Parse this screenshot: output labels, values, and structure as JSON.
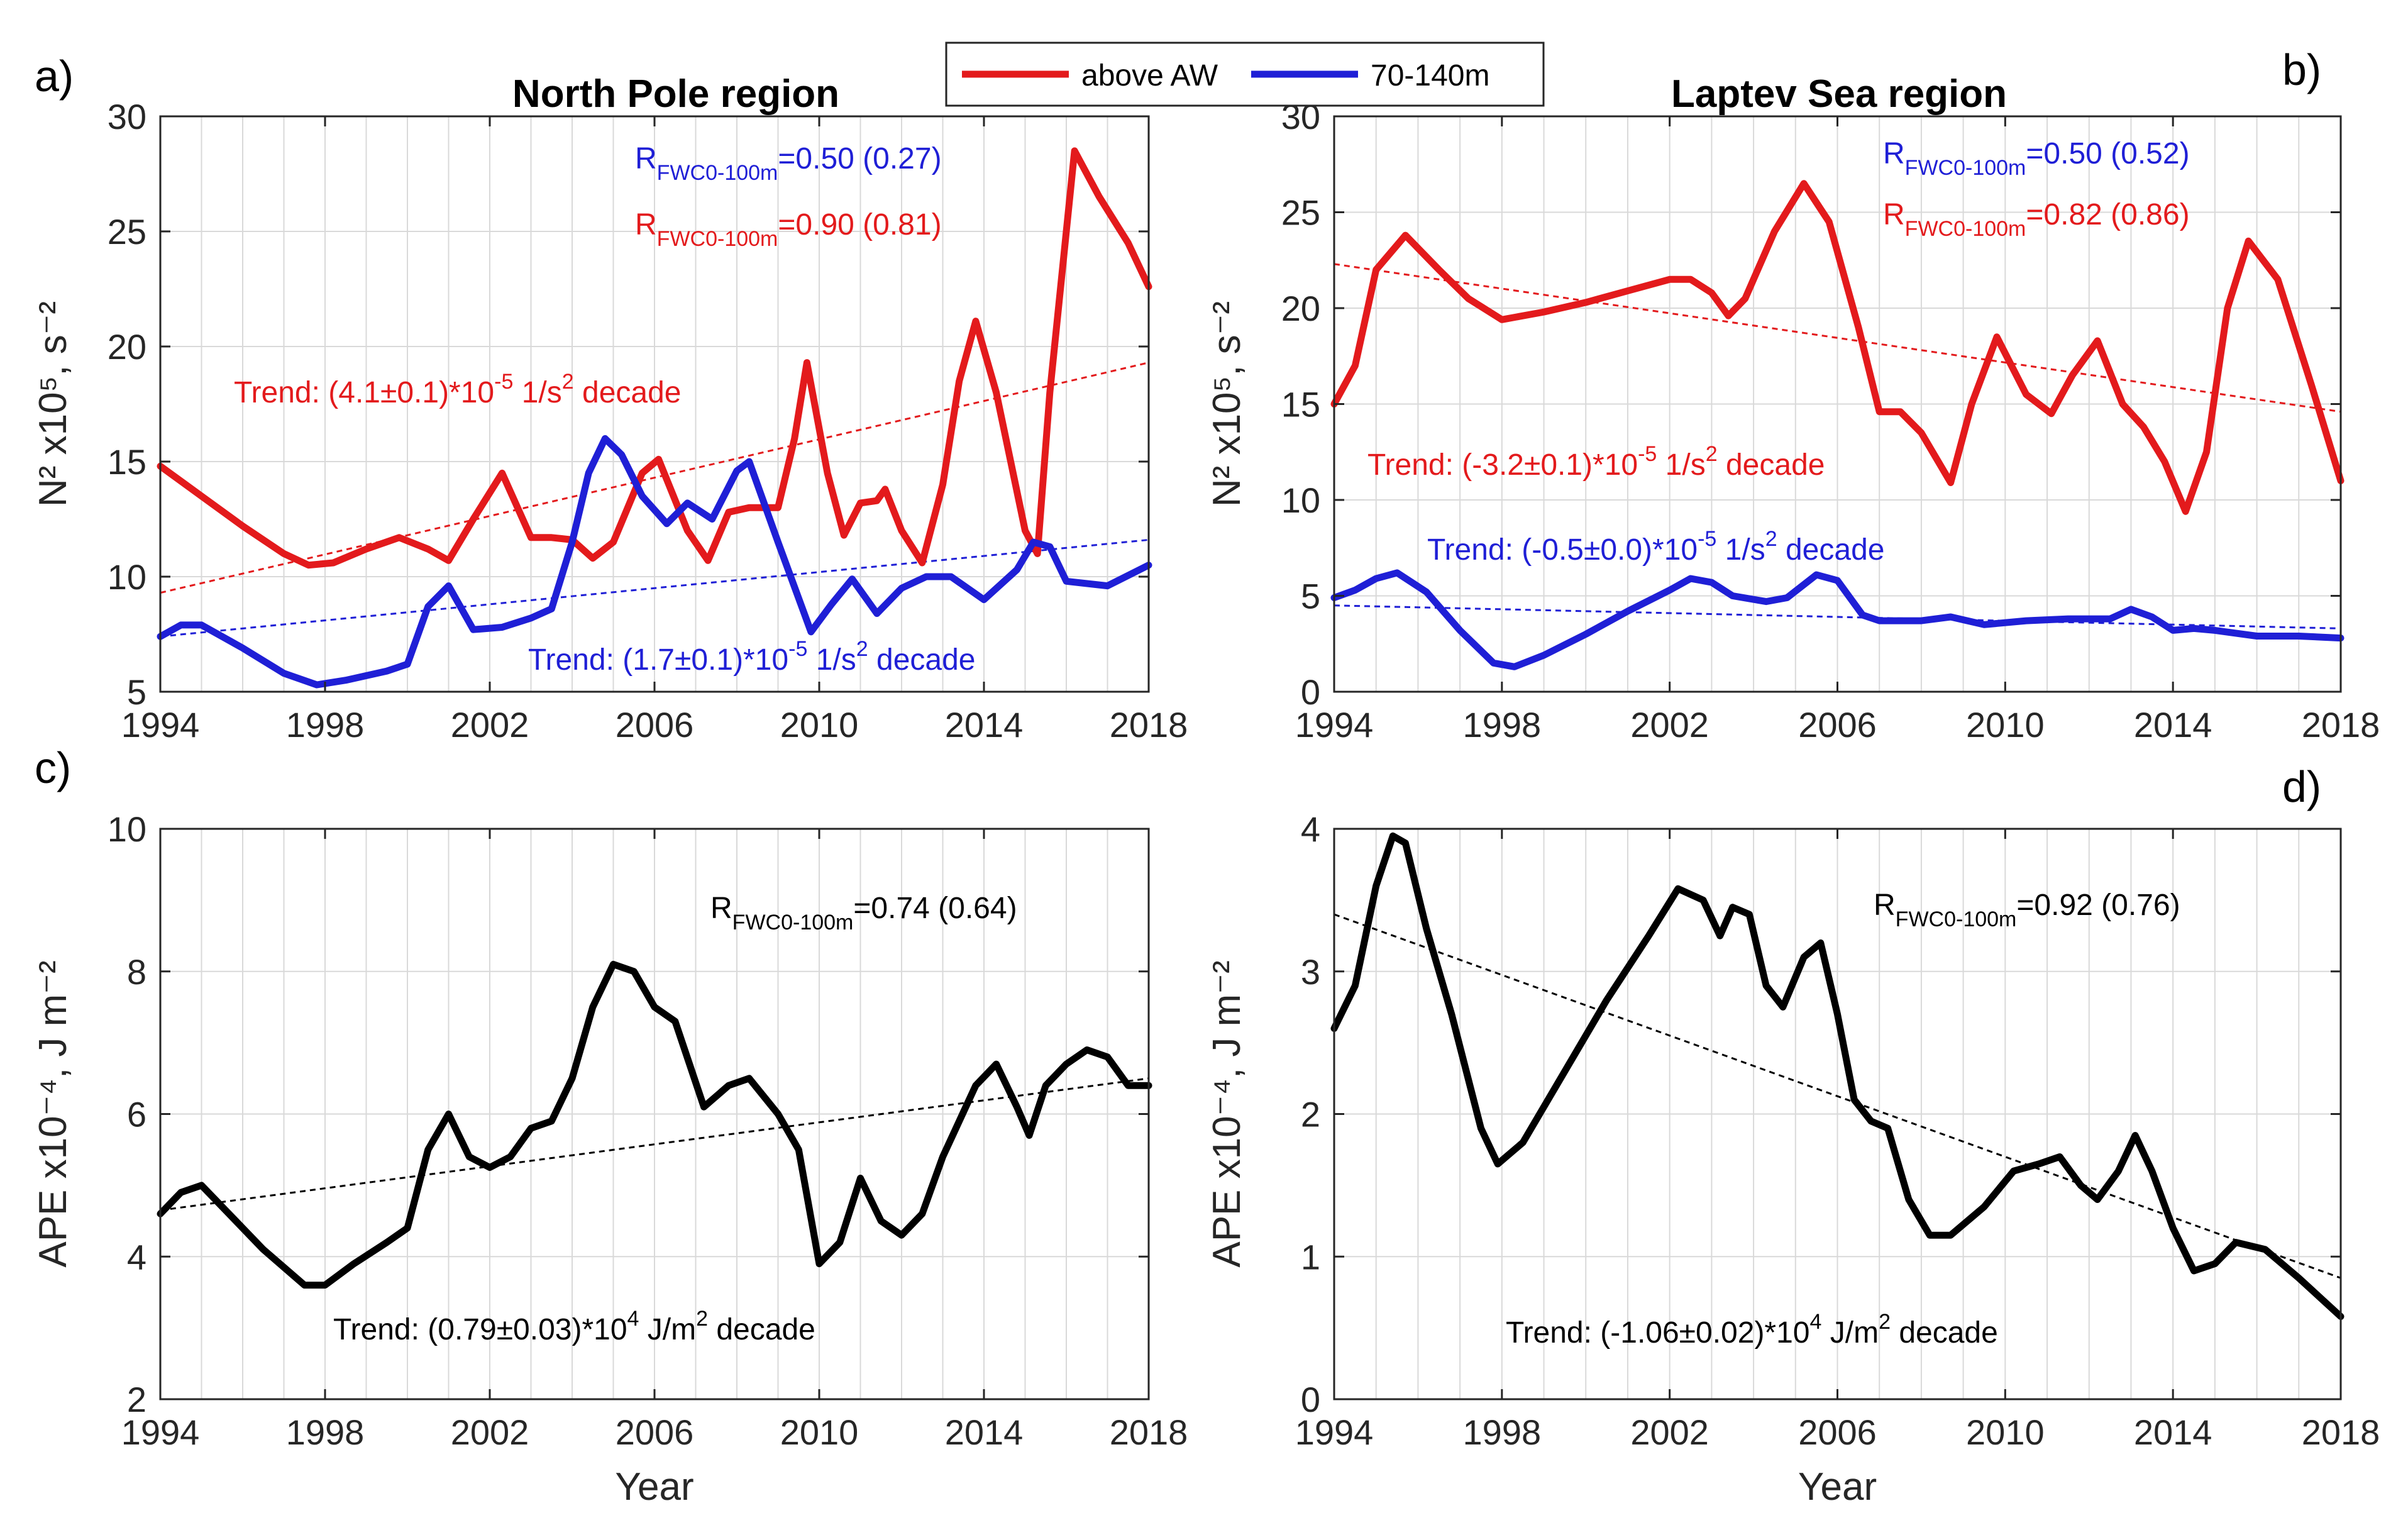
{
  "chart_data": [
    {
      "type": "line",
      "panel_label": "a)",
      "title": "North Pole region",
      "xlabel": "",
      "ylabel": "N² x10⁵, s⁻²",
      "xlim": [
        1994,
        2018
      ],
      "ylim": [
        5,
        30
      ],
      "xticks": [
        1994,
        1998,
        2002,
        2006,
        2010,
        2014,
        2018
      ],
      "yticks": [
        5,
        10,
        15,
        20,
        25,
        30
      ],
      "series": [
        {
          "name": "above AW",
          "color": "#e31a1c",
          "x": [
            1994.0,
            1995.0,
            1996.0,
            1997.0,
            1997.6,
            1998.2,
            1999.0,
            1999.8,
            2000.5,
            2001.0,
            2001.6,
            2002.3,
            2003.0,
            2003.5,
            2004.0,
            2004.5,
            2005.0,
            2005.7,
            2006.1,
            2006.8,
            2007.3,
            2007.8,
            2008.3,
            2009.0,
            2009.4,
            2009.7,
            2010.2,
            2010.6,
            2011.0,
            2011.4,
            2011.6,
            2012.0,
            2012.5,
            2013.0,
            2013.4,
            2013.8,
            2014.3,
            2015.0,
            2015.3,
            2015.6,
            2016.2,
            2016.8,
            2017.5,
            2018.0
          ],
          "y": [
            14.8,
            13.5,
            12.2,
            11.0,
            10.5,
            10.6,
            11.2,
            11.7,
            11.2,
            10.7,
            12.5,
            14.5,
            11.7,
            11.7,
            11.6,
            10.8,
            11.5,
            14.5,
            15.1,
            12.0,
            10.7,
            12.8,
            13.0,
            13.0,
            16.0,
            19.3,
            14.5,
            11.8,
            13.2,
            13.3,
            13.8,
            12.0,
            10.6,
            14.0,
            18.5,
            21.1,
            18.0,
            12.0,
            11.0,
            18.0,
            28.5,
            26.5,
            24.5,
            22.6
          ]
        },
        {
          "name": "70-140m",
          "color": "#1f1fd6",
          "x": [
            1994.0,
            1994.5,
            1995.0,
            1996.0,
            1997.0,
            1997.8,
            1998.5,
            1999.5,
            2000.0,
            2000.5,
            2001.0,
            2001.6,
            2002.3,
            2003.0,
            2003.5,
            2004.0,
            2004.4,
            2004.8,
            2005.2,
            2005.7,
            2006.3,
            2006.8,
            2007.4,
            2008.0,
            2008.3,
            2009.0,
            2009.8,
            2010.3,
            2010.8,
            2011.4,
            2012.0,
            2012.6,
            2013.2,
            2014.0,
            2014.8,
            2015.2,
            2015.6,
            2016.0,
            2017.0,
            2018.0
          ],
          "y": [
            7.4,
            7.9,
            7.9,
            6.9,
            5.8,
            5.3,
            5.5,
            5.9,
            6.2,
            8.7,
            9.6,
            7.7,
            7.8,
            8.2,
            8.6,
            11.5,
            14.5,
            16.0,
            15.3,
            13.5,
            12.3,
            13.2,
            12.5,
            14.6,
            15.0,
            11.5,
            7.6,
            8.8,
            9.9,
            8.4,
            9.5,
            10.0,
            10.0,
            9.0,
            10.3,
            11.5,
            11.3,
            9.8,
            9.6,
            10.5
          ]
        }
      ],
      "trend_lines": [
        {
          "color": "#e31a1c",
          "x": [
            1994,
            2018
          ],
          "y": [
            9.3,
            19.3
          ]
        },
        {
          "color": "#1f1fd6",
          "x": [
            1994,
            2018
          ],
          "y": [
            7.4,
            11.6
          ]
        }
      ],
      "annotations": [
        {
          "prefix": "R",
          "sub": "FWC0-100m",
          "suffix": "=0.50 (0.27)",
          "color": "#1f1fd6"
        },
        {
          "prefix": "R",
          "sub": "FWC0-100m",
          "suffix": "=0.90 (0.81)",
          "color": "#e31a1c"
        },
        {
          "prefix": "Trend: (4.1±0.1)*10",
          "sup": "-5",
          "mid": " 1/s",
          "sup2": "2",
          "suffix": " decade",
          "color": "#e31a1c"
        },
        {
          "prefix": "Trend: (1.7±0.1)*10",
          "sup": "-5",
          "mid": " 1/s",
          "sup2": "2",
          "suffix": " decade",
          "color": "#1f1fd6"
        }
      ]
    },
    {
      "type": "line",
      "panel_label": "b)",
      "title": "Laptev Sea region",
      "xlabel": "",
      "ylabel": "N² x10⁵, s⁻²",
      "xlim": [
        1994,
        2018
      ],
      "ylim": [
        0,
        30
      ],
      "xticks": [
        1994,
        1998,
        2002,
        2006,
        2010,
        2014,
        2018
      ],
      "yticks": [
        0,
        5,
        10,
        15,
        20,
        25,
        30
      ],
      "series": [
        {
          "name": "above AW",
          "color": "#e31a1c",
          "x": [
            1994.0,
            1994.5,
            1995.0,
            1995.7,
            1996.5,
            1997.2,
            1998.0,
            1999.0,
            2000.0,
            2001.0,
            2002.0,
            2002.5,
            2003.0,
            2003.4,
            2003.8,
            2004.5,
            2005.2,
            2005.8,
            2006.5,
            2007.0,
            2007.5,
            2008.0,
            2008.7,
            2009.2,
            2009.8,
            2010.5,
            2011.1,
            2011.6,
            2012.2,
            2012.8,
            2013.3,
            2013.8,
            2014.3,
            2014.8,
            2015.3,
            2015.8,
            2016.5,
            2017.3,
            2018.0
          ],
          "y": [
            15.0,
            17.0,
            22.0,
            23.8,
            22.0,
            20.5,
            19.4,
            19.8,
            20.3,
            20.9,
            21.5,
            21.5,
            20.8,
            19.6,
            20.5,
            24.0,
            26.5,
            24.5,
            19.0,
            14.6,
            14.6,
            13.5,
            10.9,
            15.0,
            18.5,
            15.5,
            14.5,
            16.5,
            18.3,
            15.0,
            13.8,
            12.0,
            9.4,
            12.5,
            20.0,
            23.5,
            21.5,
            16.0,
            11.0
          ]
        },
        {
          "name": "70-140m",
          "color": "#1f1fd6",
          "x": [
            1994.0,
            1994.5,
            1995.0,
            1995.5,
            1996.2,
            1997.0,
            1997.8,
            1998.3,
            1999.0,
            2000.0,
            2001.0,
            2002.0,
            2002.5,
            2003.0,
            2003.5,
            2004.3,
            2004.8,
            2005.5,
            2006.0,
            2006.6,
            2007.0,
            2008.0,
            2008.7,
            2009.5,
            2010.5,
            2011.5,
            2012.5,
            2013.0,
            2013.5,
            2014.0,
            2014.5,
            2015.0,
            2016.0,
            2017.0,
            2018.0
          ],
          "y": [
            4.9,
            5.3,
            5.9,
            6.2,
            5.2,
            3.2,
            1.5,
            1.3,
            1.9,
            3.0,
            4.2,
            5.3,
            5.9,
            5.7,
            5.0,
            4.7,
            4.9,
            6.1,
            5.8,
            4.0,
            3.7,
            3.7,
            3.9,
            3.5,
            3.7,
            3.8,
            3.8,
            4.3,
            3.9,
            3.2,
            3.3,
            3.2,
            2.9,
            2.9,
            2.8
          ]
        }
      ],
      "trend_lines": [
        {
          "color": "#e31a1c",
          "x": [
            1994,
            2018
          ],
          "y": [
            22.3,
            14.6
          ]
        },
        {
          "color": "#1f1fd6",
          "x": [
            1994,
            2018
          ],
          "y": [
            4.5,
            3.3
          ]
        }
      ],
      "annotations": [
        {
          "prefix": "R",
          "sub": "FWC0-100m",
          "suffix": "=0.50 (0.52)",
          "color": "#1f1fd6"
        },
        {
          "prefix": "R",
          "sub": "FWC0-100m",
          "suffix": "=0.82 (0.86)",
          "color": "#e31a1c"
        },
        {
          "prefix": "Trend: (-3.2±0.1)*10",
          "sup": "-5",
          "mid": " 1/s",
          "sup2": "2",
          "suffix": " decade",
          "color": "#e31a1c"
        },
        {
          "prefix": "Trend: (-0.5±0.0)*10",
          "sup": "-5",
          "mid": " 1/s",
          "sup2": "2",
          "suffix": " decade",
          "color": "#1f1fd6"
        }
      ]
    },
    {
      "type": "line",
      "panel_label": "c)",
      "title": "",
      "xlabel": "Year",
      "ylabel": "APE x10⁻⁴, J m⁻²",
      "xlim": [
        1994,
        2018
      ],
      "ylim": [
        2,
        10
      ],
      "xticks": [
        1994,
        1998,
        2002,
        2006,
        2010,
        2014,
        2018
      ],
      "yticks": [
        2,
        4,
        6,
        8,
        10
      ],
      "series": [
        {
          "name": "APE",
          "color": "#000000",
          "x": [
            1994.0,
            1994.5,
            1995.0,
            1995.5,
            1996.5,
            1997.5,
            1998.0,
            1998.7,
            1999.5,
            2000.0,
            2000.5,
            2001.0,
            2001.5,
            2002.0,
            2002.5,
            2003.0,
            2003.5,
            2004.0,
            2004.5,
            2005.0,
            2005.5,
            2006.0,
            2006.5,
            2007.2,
            2007.8,
            2008.3,
            2009.0,
            2009.5,
            2010.0,
            2010.5,
            2011.0,
            2011.5,
            2012.0,
            2012.5,
            2013.0,
            2013.8,
            2014.3,
            2014.8,
            2015.1,
            2015.5,
            2016.0,
            2016.5,
            2017.0,
            2017.5,
            2018.0
          ],
          "y": [
            4.6,
            4.9,
            5.0,
            4.7,
            4.1,
            3.6,
            3.6,
            3.9,
            4.2,
            4.4,
            5.5,
            6.0,
            5.4,
            5.25,
            5.4,
            5.8,
            5.9,
            6.5,
            7.5,
            8.1,
            8.0,
            7.5,
            7.3,
            6.1,
            6.4,
            6.5,
            6.0,
            5.5,
            3.9,
            4.2,
            5.1,
            4.5,
            4.3,
            4.6,
            5.4,
            6.4,
            6.7,
            6.1,
            5.7,
            6.4,
            6.7,
            6.9,
            6.8,
            6.4,
            6.4
          ]
        }
      ],
      "trend_lines": [
        {
          "color": "#000000",
          "x": [
            1994,
            2018
          ],
          "y": [
            4.65,
            6.5
          ]
        }
      ],
      "annotations": [
        {
          "prefix": "R",
          "sub": "FWC0-100m",
          "suffix": "=0.74 (0.64)",
          "color": "#000000"
        },
        {
          "prefix": "Trend: (0.79±0.03)*10",
          "sup": "4",
          "mid": " J/m",
          "sup2": "2",
          "suffix": " decade",
          "color": "#000000"
        }
      ]
    },
    {
      "type": "line",
      "panel_label": "d)",
      "title": "",
      "xlabel": "Year",
      "ylabel": "APE x10⁻⁴, J m⁻²",
      "xlim": [
        1994,
        2018
      ],
      "ylim": [
        0,
        4
      ],
      "xticks": [
        1994,
        1998,
        2002,
        2006,
        2010,
        2014,
        2018
      ],
      "yticks": [
        0,
        1,
        2,
        3,
        4
      ],
      "series": [
        {
          "name": "APE",
          "color": "#000000",
          "x": [
            1994.0,
            1994.5,
            1995.0,
            1995.4,
            1995.7,
            1996.2,
            1996.8,
            1997.5,
            1997.9,
            1998.5,
            1999.5,
            2000.5,
            2001.5,
            2002.2,
            2002.8,
            2003.2,
            2003.5,
            2003.9,
            2004.3,
            2004.7,
            2005.2,
            2005.6,
            2006.0,
            2006.4,
            2006.8,
            2007.2,
            2007.7,
            2008.2,
            2008.7,
            2009.5,
            2010.2,
            2010.8,
            2011.3,
            2011.8,
            2012.2,
            2012.7,
            2013.1,
            2013.5,
            2014.0,
            2014.5,
            2015.0,
            2015.5,
            2016.2,
            2017.0,
            2018.0
          ],
          "y": [
            2.6,
            2.9,
            3.6,
            3.95,
            3.9,
            3.3,
            2.7,
            1.9,
            1.65,
            1.8,
            2.3,
            2.8,
            3.25,
            3.58,
            3.5,
            3.25,
            3.45,
            3.4,
            2.9,
            2.75,
            3.1,
            3.2,
            2.7,
            2.1,
            1.95,
            1.9,
            1.4,
            1.15,
            1.15,
            1.35,
            1.6,
            1.65,
            1.7,
            1.5,
            1.4,
            1.6,
            1.85,
            1.6,
            1.2,
            0.9,
            0.95,
            1.1,
            1.05,
            0.85,
            0.58
          ]
        }
      ],
      "trend_lines": [
        {
          "color": "#000000",
          "x": [
            1994,
            2018
          ],
          "y": [
            3.4,
            0.85
          ]
        }
      ],
      "annotations": [
        {
          "prefix": "R",
          "sub": "FWC0-100m",
          "suffix": "=0.92 (0.76)",
          "color": "#000000"
        },
        {
          "prefix": "Trend: (-1.06±0.02)*10",
          "sup": "4",
          "mid": " J/m",
          "sup2": "2",
          "suffix": " decade",
          "color": "#000000"
        }
      ]
    }
  ],
  "legend": {
    "entries": [
      {
        "label": "above AW",
        "color": "#e31a1c"
      },
      {
        "label": "70-140m",
        "color": "#1f1fd6"
      }
    ]
  }
}
